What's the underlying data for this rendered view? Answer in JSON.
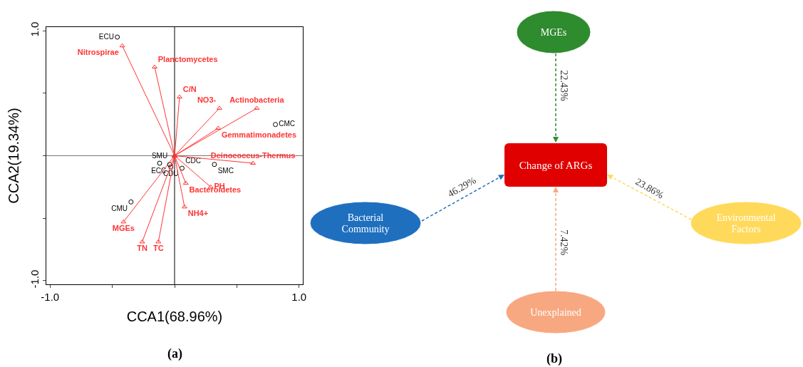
{
  "chart_data": [
    {
      "type": "scatter",
      "xlabel": "CCA1(68.96%)",
      "ylabel": "CCA2(19.34%)",
      "marker": "circle",
      "grid": false,
      "legend": false,
      "xlim": [
        -1.03,
        1.03
      ],
      "ylim": [
        -1.03,
        1.03
      ],
      "xticks": [
        {
          "value": -1,
          "label": "-1.0"
        },
        {
          "value": -0.5,
          "label": null
        },
        {
          "value": 0,
          "label": null
        },
        {
          "value": 0.5,
          "label": null
        },
        {
          "value": 1,
          "label": "1.0"
        }
      ],
      "yticks": [
        {
          "value": -1,
          "label": "-1.0"
        },
        {
          "value": -0.5,
          "label": null
        },
        {
          "value": 0,
          "label": null
        },
        {
          "value": 0.5,
          "label": null
        },
        {
          "value": 1,
          "label": "1.0"
        }
      ],
      "series": [
        {
          "name": "ECU",
          "color": "#000000",
          "x": [
            -0.46
          ],
          "values": [
            0.95
          ]
        },
        {
          "name": "CMC",
          "color": "#000000",
          "x": [
            0.81
          ],
          "values": [
            0.25
          ]
        },
        {
          "name": "SMU",
          "color": "#000000",
          "x": [
            -0.12
          ],
          "values": [
            -0.06
          ]
        },
        {
          "name": "ECC",
          "color": "#000000",
          "x": [
            -0.04
          ],
          "values": [
            -0.07
          ]
        },
        {
          "name": "CDU",
          "color": "#000000",
          "x": [
            -0.03
          ],
          "values": [
            -0.09
          ]
        },
        {
          "name": "CDC",
          "color": "#000000",
          "x": [
            0.06
          ],
          "values": [
            -0.1
          ]
        },
        {
          "name": "SMC",
          "color": "#000000",
          "x": [
            0.32
          ],
          "values": [
            -0.07
          ]
        },
        {
          "name": "CMU",
          "color": "#000000",
          "x": [
            -0.35
          ],
          "values": [
            -0.37
          ]
        },
        {
          "type": "line",
          "marker": "triangle",
          "name": "Nitrospirae",
          "color": "#ff3333",
          "x": [
            0,
            -0.42
          ],
          "values": [
            0,
            0.88
          ]
        },
        {
          "type": "line",
          "marker": "triangle",
          "name": "Planctomycetes",
          "color": "#ff3333",
          "x": [
            0,
            -0.16
          ],
          "values": [
            0,
            0.71
          ]
        },
        {
          "type": "line",
          "marker": "triangle",
          "name": "C/N",
          "color": "#ff3333",
          "x": [
            0,
            0.04
          ],
          "values": [
            0,
            0.47
          ]
        },
        {
          "type": "line",
          "marker": "triangle",
          "name": "NO3-",
          "color": "#ff3333",
          "x": [
            0,
            0.36
          ],
          "values": [
            0,
            0.38
          ]
        },
        {
          "type": "line",
          "marker": "triangle",
          "name": "Actinobacteria",
          "color": "#ff3333",
          "x": [
            0,
            0.66
          ],
          "values": [
            0,
            0.38
          ]
        },
        {
          "type": "line",
          "marker": "triangle",
          "name": "Gemmatimonadetes",
          "color": "#ff3333",
          "x": [
            0,
            0.35
          ],
          "values": [
            0,
            0.22
          ]
        },
        {
          "type": "line",
          "marker": "triangle",
          "name": "Deinococcus-Thermus",
          "color": "#ff3333",
          "x": [
            0,
            0.63
          ],
          "values": [
            0,
            -0.06
          ]
        },
        {
          "type": "line",
          "marker": "triangle",
          "name": "PH",
          "color": "#ff3333",
          "x": [
            0,
            0.29
          ],
          "values": [
            0,
            -0.25
          ]
        },
        {
          "type": "line",
          "marker": "triangle",
          "name": "Bacteroidetes",
          "color": "#ff3333",
          "x": [
            0,
            0.09
          ],
          "values": [
            0,
            -0.22
          ]
        },
        {
          "type": "line",
          "marker": "triangle",
          "name": "NH4+",
          "color": "#ff3333",
          "x": [
            0,
            0.08
          ],
          "values": [
            0,
            -0.41
          ]
        },
        {
          "type": "line",
          "marker": "triangle",
          "name": "MGEs",
          "color": "#ff3333",
          "x": [
            0,
            -0.41
          ],
          "values": [
            0,
            -0.53
          ]
        },
        {
          "type": "line",
          "marker": "triangle",
          "name": "TN",
          "color": "#ff3333",
          "x": [
            0,
            -0.26
          ],
          "values": [
            0,
            -0.69
          ]
        },
        {
          "type": "line",
          "marker": "triangle",
          "name": "TC",
          "color": "#ff3333",
          "x": [
            0,
            -0.13
          ],
          "values": [
            0,
            -0.69
          ]
        }
      ],
      "ref_lines": [
        {
          "axis": "x",
          "value": 0,
          "color": "#000000"
        },
        {
          "axis": "y",
          "value": 0,
          "color": "#777777"
        }
      ],
      "annotations": [
        "(a)"
      ]
    },
    {
      "type": "other",
      "categories": [
        "MGEs",
        "Bacterial Community",
        "Environmental Factors",
        "Unexplained"
      ],
      "colors": [
        "#2e8b2e",
        "#1f6fbf",
        "#ffd95a",
        "#f8a880"
      ],
      "annotations": [
        "Change of ARGs",
        "22.43%",
        "46.29%",
        "23.86%",
        "7.42%",
        "(b)"
      ]
    }
  ]
}
